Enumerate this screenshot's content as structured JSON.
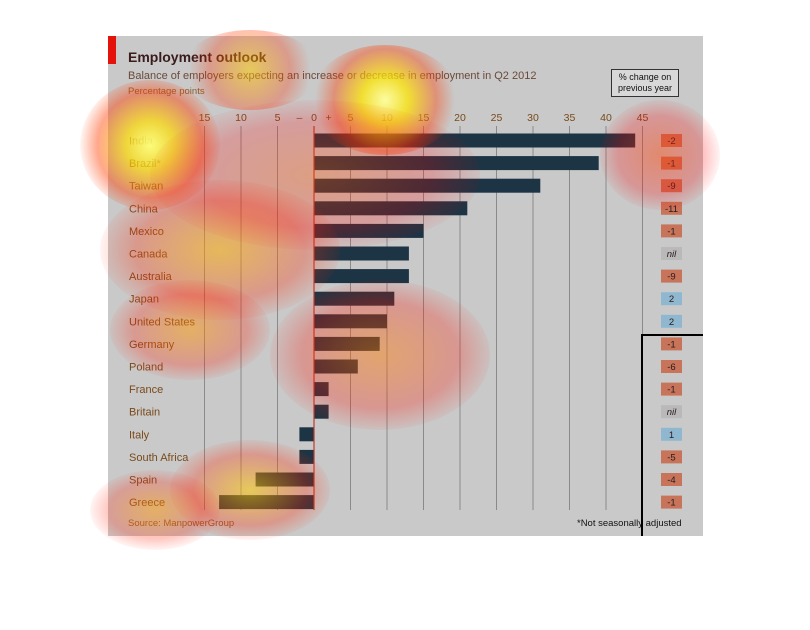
{
  "title": "Employment outlook",
  "subtitle": "Balance of employers expecting an increase or decrease in employment in Q2 2012",
  "unit_label": "Percentage points",
  "change_header": "% change on previous year",
  "source": "Source: ManpowerGroup",
  "footnote": "*Not seasonally adjusted",
  "colors": {
    "bar": "#1c3444",
    "panel": "#c9c9c9",
    "neg_badge": "#c8745a",
    "pos_badge": "#8fb8d0",
    "nil_badge": "#b9b9b9"
  },
  "chart_data": {
    "type": "bar",
    "orientation": "horizontal",
    "categories": [
      "India",
      "Brazil*",
      "Taiwan",
      "China",
      "Mexico",
      "Canada",
      "Australia",
      "Japan",
      "United States",
      "Germany",
      "Poland",
      "France",
      "Britain",
      "Italy",
      "South Africa",
      "Spain",
      "Greece"
    ],
    "values": [
      44,
      39,
      31,
      21,
      15,
      13,
      13,
      11,
      10,
      9,
      6,
      2,
      2,
      -2,
      -2,
      -8,
      -13
    ],
    "change": [
      "-2",
      "-1",
      "-9",
      "-11",
      "-1",
      "nil",
      "-9",
      "2",
      "2",
      "-1",
      "-6",
      "-1",
      "nil",
      "1",
      "-5",
      "-4",
      "-1"
    ],
    "xlim": [
      -15,
      45
    ],
    "ticks": [
      {
        "value": -15,
        "label": "15"
      },
      {
        "value": -10,
        "label": "10"
      },
      {
        "value": -5,
        "label": "5"
      },
      {
        "value": -2,
        "label": "–"
      },
      {
        "value": 0,
        "label": "0"
      },
      {
        "value": 2,
        "label": "+"
      },
      {
        "value": 5,
        "label": "5"
      },
      {
        "value": 10,
        "label": "10"
      },
      {
        "value": 15,
        "label": "15"
      },
      {
        "value": 20,
        "label": "20"
      },
      {
        "value": 25,
        "label": "25"
      },
      {
        "value": 30,
        "label": "30"
      },
      {
        "value": 35,
        "label": "35"
      },
      {
        "value": 40,
        "label": "40"
      },
      {
        "value": 45,
        "label": "45"
      }
    ],
    "grid": true
  }
}
